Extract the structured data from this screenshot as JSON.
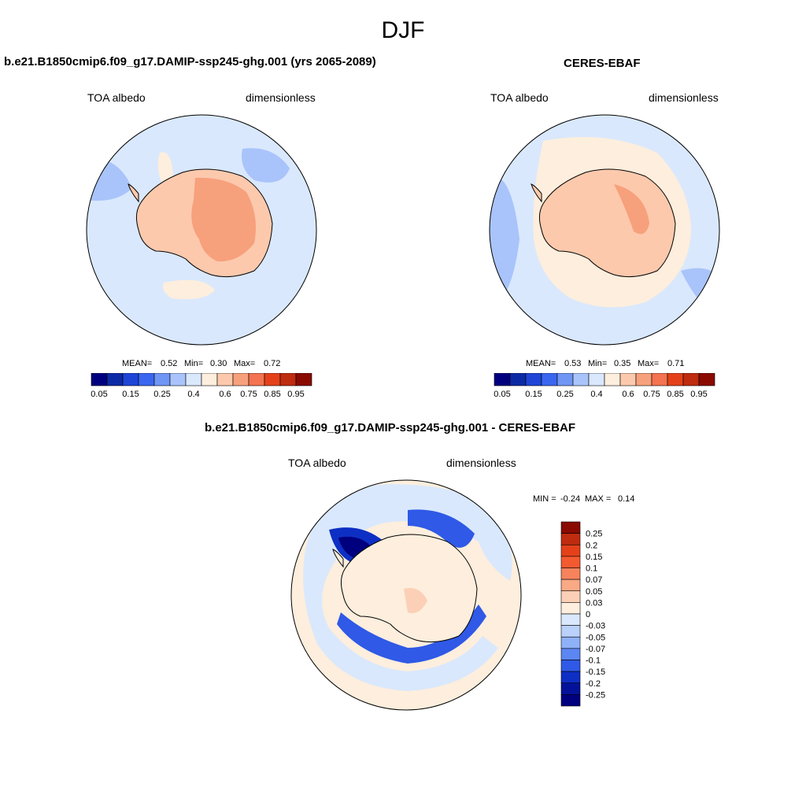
{
  "title": "DJF",
  "units_label": "dimensionless",
  "variable_label": "TOA albedo",
  "chart_data": [
    {
      "type": "polar-map",
      "title": "b.e21.B1850cmip6.f09_g17.DAMIP-ssp245-ghg.001 (yrs 2065-2089)",
      "left_label": "TOA albedo",
      "right_label": "dimensionless",
      "projection": "south polar stereographic",
      "stats": {
        "mean_label": "MEAN=",
        "mean": "0.52",
        "min_label": "Min=",
        "min": "0.30",
        "max_label": "Max=",
        "max": "0.72"
      },
      "colorbar": {
        "orientation": "horizontal",
        "labels": [
          "0.05",
          "0.15",
          "0.25",
          "0.4",
          "0.6",
          "0.75",
          "0.85",
          "0.95"
        ],
        "colors": [
          "#00007f",
          "#0d2aa6",
          "#1e45d6",
          "#3a66f0",
          "#6f95f5",
          "#a9c4fb",
          "#d9e8fd",
          "#fdeedd",
          "#fcc9ad",
          "#f7a07c",
          "#f47350",
          "#e4411a",
          "#bf2c10",
          "#8a0a00"
        ]
      }
    },
    {
      "type": "polar-map",
      "title": "CERES-EBAF",
      "left_label": "TOA albedo",
      "right_label": "dimensionless",
      "projection": "south polar stereographic",
      "stats": {
        "mean_label": "MEAN=",
        "mean": "0.53",
        "min_label": "Min=",
        "min": "0.35",
        "max_label": "Max=",
        "max": "0.71"
      },
      "colorbar": {
        "orientation": "horizontal",
        "labels": [
          "0.05",
          "0.15",
          "0.25",
          "0.4",
          "0.6",
          "0.75",
          "0.85",
          "0.95"
        ],
        "colors": [
          "#00007f",
          "#0d2aa6",
          "#1e45d6",
          "#3a66f0",
          "#6f95f5",
          "#a9c4fb",
          "#d9e8fd",
          "#fdeedd",
          "#fcc9ad",
          "#f7a07c",
          "#f47350",
          "#e4411a",
          "#bf2c10",
          "#8a0a00"
        ]
      }
    },
    {
      "type": "polar-map-difference",
      "title": "b.e21.B1850cmip6.f09_g17.DAMIP-ssp245-ghg.001 - CERES-EBAF",
      "left_label": "TOA albedo",
      "right_label": "dimensionless",
      "projection": "south polar stereographic",
      "stats": {
        "min_label": "MIN =",
        "min": "-0.24",
        "max_label": "MAX =",
        "max": "0.14"
      },
      "colorbar": {
        "orientation": "vertical",
        "labels": [
          "0.25",
          "0.2",
          "0.15",
          "0.1",
          "0.07",
          "0.05",
          "0.03",
          "0",
          "-0.03",
          "-0.05",
          "-0.07",
          "-0.1",
          "-0.15",
          "-0.2",
          "-0.25"
        ],
        "colors": [
          "#8a0a00",
          "#bf2c10",
          "#e4411a",
          "#f45a30",
          "#f7835d",
          "#f9a985",
          "#fcd0b6",
          "#fdeedd",
          "#d9e8fd",
          "#b9d1fb",
          "#8fb1f8",
          "#5c86f2",
          "#2f59e6",
          "#0e2fc4",
          "#04129a",
          "#00007f"
        ]
      }
    }
  ]
}
